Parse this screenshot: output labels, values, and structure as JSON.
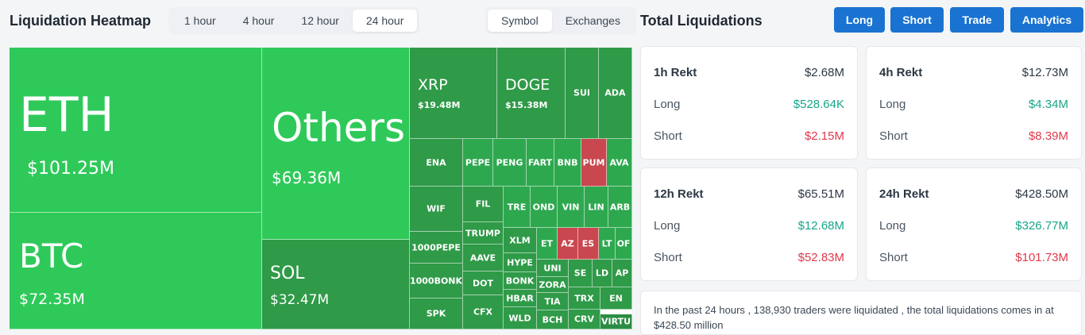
{
  "heatmap": {
    "title": "Liquidation Heatmap",
    "time_tabs": [
      "1 hour",
      "4 hour",
      "12 hour",
      "24 hour"
    ],
    "active_time_tab": "24 hour",
    "view_tabs": [
      "Symbol",
      "Exchanges"
    ],
    "active_view_tab": "Symbol",
    "tiles": [
      {
        "symbol": "ETH",
        "amount": "$101.25M"
      },
      {
        "symbol": "BTC",
        "amount": "$72.35M"
      },
      {
        "symbol": "Others",
        "amount": "$69.36M"
      },
      {
        "symbol": "SOL",
        "amount": "$32.47M"
      },
      {
        "symbol": "XRP",
        "amount": "$19.48M"
      },
      {
        "symbol": "DOGE",
        "amount": "$15.38M"
      },
      {
        "symbol": "SUI"
      },
      {
        "symbol": "ADA"
      },
      {
        "symbol": "ENA"
      },
      {
        "symbol": "PEPE"
      },
      {
        "symbol": "PENG"
      },
      {
        "symbol": "FART"
      },
      {
        "symbol": "BNB"
      },
      {
        "symbol": "PUM"
      },
      {
        "symbol": "AVA"
      },
      {
        "symbol": "WIF"
      },
      {
        "symbol": "FIL"
      },
      {
        "symbol": "TRE"
      },
      {
        "symbol": "OND"
      },
      {
        "symbol": "VIN"
      },
      {
        "symbol": "LIN"
      },
      {
        "symbol": "ARB"
      },
      {
        "symbol": "1000PEPE"
      },
      {
        "symbol": "TRUMP"
      },
      {
        "symbol": "XLM"
      },
      {
        "symbol": "ET"
      },
      {
        "symbol": "AZ"
      },
      {
        "symbol": "ES"
      },
      {
        "symbol": "LT"
      },
      {
        "symbol": "OF"
      },
      {
        "symbol": "AAVE"
      },
      {
        "symbol": "HYPE"
      },
      {
        "symbol": "1000BONK"
      },
      {
        "symbol": "UNI"
      },
      {
        "symbol": "SE"
      },
      {
        "symbol": "LD"
      },
      {
        "symbol": "AP"
      },
      {
        "symbol": "DOT"
      },
      {
        "symbol": "BONK"
      },
      {
        "symbol": "ZORA"
      },
      {
        "symbol": "HBAR"
      },
      {
        "symbol": "TIA"
      },
      {
        "symbol": "TRX"
      },
      {
        "symbol": "EN"
      },
      {
        "symbol": "SPK"
      },
      {
        "symbol": "CFX"
      },
      {
        "symbol": "WLD"
      },
      {
        "symbol": "BCH"
      },
      {
        "symbol": "CRV"
      },
      {
        "symbol": "VIRTU"
      }
    ]
  },
  "totals": {
    "title": "Total Liquidations",
    "buttons": [
      "Long",
      "Short",
      "Trade",
      "Analytics"
    ],
    "cards": [
      {
        "label": "1h Rekt",
        "total": "$2.68M",
        "long_label": "Long",
        "long": "$528.64K",
        "short_label": "Short",
        "short": "$2.15M"
      },
      {
        "label": "4h Rekt",
        "total": "$12.73M",
        "long_label": "Long",
        "long": "$4.34M",
        "short_label": "Short",
        "short": "$8.39M"
      },
      {
        "label": "12h Rekt",
        "total": "$65.51M",
        "long_label": "Long",
        "long": "$12.68M",
        "short_label": "Short",
        "short": "$52.83M"
      },
      {
        "label": "24h Rekt",
        "total": "$428.50M",
        "long_label": "Long",
        "long": "$326.77M",
        "short_label": "Short",
        "short": "$101.73M"
      }
    ],
    "summary": "In the past 24 hours , 138,930 traders were liquidated , the total liquidations comes in at $428.50 million"
  },
  "colors": {
    "accent": "#1a73d1",
    "liquidation_green_bright": "#2fc95a",
    "liquidation_green": "#2ea84f",
    "liquidation_red": "#c9474e",
    "long_value": "#17a58a",
    "short_value": "#e0394a"
  }
}
